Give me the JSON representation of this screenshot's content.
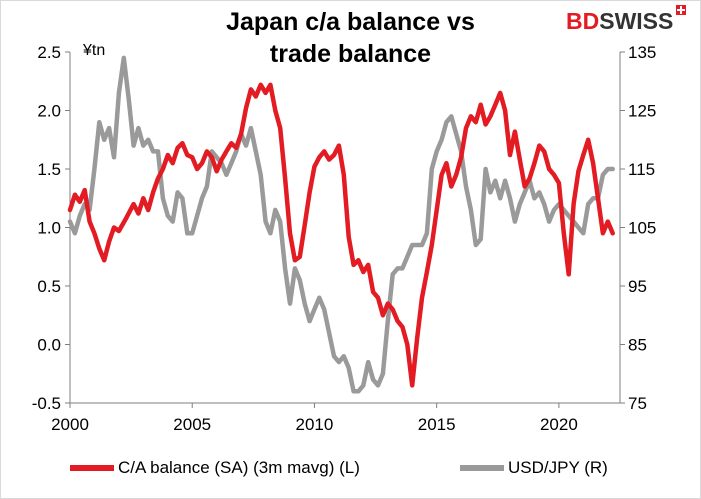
{
  "chart_data": {
    "type": "line",
    "title_line1": "Japan c/a balance vs",
    "title_line2": "trade balance",
    "unit_label": "¥tn",
    "logo": {
      "part1": "BD",
      "part2": "SWISS"
    },
    "colors": {
      "ca": "#e31b23",
      "usdjpy": "#9a9a9a",
      "logo_red": "#e31b23"
    },
    "x_ticks": [
      "2000",
      "2005",
      "2010",
      "2015",
      "2020"
    ],
    "x_range": [
      2000,
      2022.5
    ],
    "y_left": {
      "range": [
        -0.5,
        2.5
      ],
      "ticks": [
        "-0.5",
        "0.0",
        "0.5",
        "1.0",
        "1.5",
        "2.0",
        "2.5"
      ]
    },
    "y_right": {
      "range": [
        75,
        135
      ],
      "ticks": [
        "75",
        "85",
        "95",
        "105",
        "115",
        "125",
        "135"
      ]
    },
    "grid": false,
    "legend_position": "bottom",
    "series": [
      {
        "name": "C/A balance (SA) (3m mavg) (L)",
        "axis": "left",
        "points": [
          [
            2000.0,
            1.15
          ],
          [
            2000.2,
            1.28
          ],
          [
            2000.4,
            1.22
          ],
          [
            2000.6,
            1.32
          ],
          [
            2000.8,
            1.05
          ],
          [
            2001.0,
            0.95
          ],
          [
            2001.2,
            0.82
          ],
          [
            2001.4,
            0.72
          ],
          [
            2001.6,
            0.88
          ],
          [
            2001.8,
            1.0
          ],
          [
            2002.0,
            0.97
          ],
          [
            2002.3,
            1.08
          ],
          [
            2002.6,
            1.2
          ],
          [
            2002.8,
            1.12
          ],
          [
            2003.0,
            1.25
          ],
          [
            2003.2,
            1.15
          ],
          [
            2003.4,
            1.3
          ],
          [
            2003.6,
            1.42
          ],
          [
            2003.8,
            1.5
          ],
          [
            2004.0,
            1.62
          ],
          [
            2004.2,
            1.55
          ],
          [
            2004.4,
            1.68
          ],
          [
            2004.6,
            1.72
          ],
          [
            2004.8,
            1.62
          ],
          [
            2005.0,
            1.6
          ],
          [
            2005.2,
            1.5
          ],
          [
            2005.4,
            1.55
          ],
          [
            2005.6,
            1.65
          ],
          [
            2005.8,
            1.6
          ],
          [
            2006.0,
            1.48
          ],
          [
            2006.2,
            1.58
          ],
          [
            2006.4,
            1.65
          ],
          [
            2006.6,
            1.72
          ],
          [
            2006.8,
            1.68
          ],
          [
            2007.0,
            1.8
          ],
          [
            2007.2,
            2.02
          ],
          [
            2007.4,
            2.18
          ],
          [
            2007.6,
            2.12
          ],
          [
            2007.8,
            2.22
          ],
          [
            2008.0,
            2.15
          ],
          [
            2008.2,
            2.22
          ],
          [
            2008.4,
            2.0
          ],
          [
            2008.6,
            1.85
          ],
          [
            2008.8,
            1.42
          ],
          [
            2009.0,
            0.95
          ],
          [
            2009.2,
            0.72
          ],
          [
            2009.4,
            0.75
          ],
          [
            2009.6,
            1.02
          ],
          [
            2009.8,
            1.3
          ],
          [
            2010.0,
            1.52
          ],
          [
            2010.2,
            1.6
          ],
          [
            2010.4,
            1.65
          ],
          [
            2010.6,
            1.58
          ],
          [
            2010.8,
            1.62
          ],
          [
            2011.0,
            1.7
          ],
          [
            2011.2,
            1.45
          ],
          [
            2011.4,
            0.92
          ],
          [
            2011.6,
            0.68
          ],
          [
            2011.8,
            0.72
          ],
          [
            2012.0,
            0.62
          ],
          [
            2012.2,
            0.68
          ],
          [
            2012.4,
            0.45
          ],
          [
            2012.6,
            0.4
          ],
          [
            2012.8,
            0.25
          ],
          [
            2013.0,
            0.35
          ],
          [
            2013.2,
            0.3
          ],
          [
            2013.4,
            0.2
          ],
          [
            2013.6,
            0.15
          ],
          [
            2013.8,
            0.0
          ],
          [
            2014.0,
            -0.35
          ],
          [
            2014.2,
            0.05
          ],
          [
            2014.4,
            0.4
          ],
          [
            2014.6,
            0.62
          ],
          [
            2014.8,
            0.85
          ],
          [
            2015.0,
            1.15
          ],
          [
            2015.2,
            1.45
          ],
          [
            2015.4,
            1.55
          ],
          [
            2015.6,
            1.35
          ],
          [
            2015.8,
            1.45
          ],
          [
            2016.0,
            1.6
          ],
          [
            2016.2,
            1.85
          ],
          [
            2016.4,
            1.95
          ],
          [
            2016.6,
            1.9
          ],
          [
            2016.8,
            2.05
          ],
          [
            2017.0,
            1.88
          ],
          [
            2017.2,
            1.95
          ],
          [
            2017.4,
            2.05
          ],
          [
            2017.6,
            2.15
          ],
          [
            2017.8,
            2.0
          ],
          [
            2018.0,
            1.62
          ],
          [
            2018.2,
            1.82
          ],
          [
            2018.4,
            1.58
          ],
          [
            2018.6,
            1.35
          ],
          [
            2018.8,
            1.42
          ],
          [
            2019.0,
            1.55
          ],
          [
            2019.2,
            1.7
          ],
          [
            2019.4,
            1.65
          ],
          [
            2019.6,
            1.5
          ],
          [
            2019.8,
            1.45
          ],
          [
            2020.0,
            1.38
          ],
          [
            2020.2,
            0.95
          ],
          [
            2020.4,
            0.6
          ],
          [
            2020.6,
            1.2
          ],
          [
            2020.8,
            1.48
          ],
          [
            2021.0,
            1.62
          ],
          [
            2021.2,
            1.75
          ],
          [
            2021.4,
            1.55
          ],
          [
            2021.6,
            1.25
          ],
          [
            2021.8,
            0.95
          ],
          [
            2022.0,
            1.05
          ],
          [
            2022.2,
            0.95
          ]
        ]
      },
      {
        "name": "USD/JPY (R)",
        "axis": "right",
        "points": [
          [
            2000.0,
            106
          ],
          [
            2000.2,
            104
          ],
          [
            2000.4,
            107
          ],
          [
            2000.6,
            109
          ],
          [
            2000.8,
            108
          ],
          [
            2001.0,
            115
          ],
          [
            2001.2,
            123
          ],
          [
            2001.4,
            120
          ],
          [
            2001.6,
            122
          ],
          [
            2001.8,
            117
          ],
          [
            2002.0,
            128
          ],
          [
            2002.2,
            134
          ],
          [
            2002.4,
            127
          ],
          [
            2002.6,
            119
          ],
          [
            2002.8,
            122
          ],
          [
            2003.0,
            119
          ],
          [
            2003.2,
            120
          ],
          [
            2003.4,
            118
          ],
          [
            2003.6,
            118
          ],
          [
            2003.8,
            110
          ],
          [
            2004.0,
            107
          ],
          [
            2004.2,
            106
          ],
          [
            2004.4,
            111
          ],
          [
            2004.6,
            110
          ],
          [
            2004.8,
            104
          ],
          [
            2005.0,
            104
          ],
          [
            2005.2,
            107
          ],
          [
            2005.4,
            110
          ],
          [
            2005.6,
            112
          ],
          [
            2005.8,
            118
          ],
          [
            2006.0,
            117
          ],
          [
            2006.2,
            116
          ],
          [
            2006.4,
            114
          ],
          [
            2006.6,
            116
          ],
          [
            2006.8,
            118
          ],
          [
            2007.0,
            121
          ],
          [
            2007.2,
            119
          ],
          [
            2007.4,
            122
          ],
          [
            2007.6,
            118
          ],
          [
            2007.8,
            114
          ],
          [
            2008.0,
            106
          ],
          [
            2008.2,
            104
          ],
          [
            2008.4,
            108
          ],
          [
            2008.6,
            106
          ],
          [
            2008.8,
            98
          ],
          [
            2009.0,
            92
          ],
          [
            2009.2,
            98
          ],
          [
            2009.4,
            96
          ],
          [
            2009.6,
            92
          ],
          [
            2009.8,
            89
          ],
          [
            2010.0,
            91
          ],
          [
            2010.2,
            93
          ],
          [
            2010.4,
            91
          ],
          [
            2010.6,
            87
          ],
          [
            2010.8,
            83
          ],
          [
            2011.0,
            82
          ],
          [
            2011.2,
            83
          ],
          [
            2011.4,
            81
          ],
          [
            2011.6,
            77
          ],
          [
            2011.8,
            77
          ],
          [
            2012.0,
            78
          ],
          [
            2012.2,
            82
          ],
          [
            2012.4,
            79
          ],
          [
            2012.6,
            78
          ],
          [
            2012.8,
            80
          ],
          [
            2013.0,
            89
          ],
          [
            2013.2,
            97
          ],
          [
            2013.4,
            98
          ],
          [
            2013.6,
            98
          ],
          [
            2013.8,
            100
          ],
          [
            2014.0,
            102
          ],
          [
            2014.2,
            102
          ],
          [
            2014.4,
            102
          ],
          [
            2014.6,
            104
          ],
          [
            2014.8,
            115
          ],
          [
            2015.0,
            118
          ],
          [
            2015.2,
            120
          ],
          [
            2015.4,
            123
          ],
          [
            2015.6,
            124
          ],
          [
            2015.8,
            121
          ],
          [
            2016.0,
            118
          ],
          [
            2016.2,
            112
          ],
          [
            2016.4,
            108
          ],
          [
            2016.6,
            102
          ],
          [
            2016.8,
            103
          ],
          [
            2017.0,
            115
          ],
          [
            2017.2,
            111
          ],
          [
            2017.4,
            113
          ],
          [
            2017.6,
            110
          ],
          [
            2017.8,
            113
          ],
          [
            2018.0,
            110
          ],
          [
            2018.2,
            106
          ],
          [
            2018.4,
            109
          ],
          [
            2018.6,
            111
          ],
          [
            2018.8,
            113
          ],
          [
            2019.0,
            110
          ],
          [
            2019.2,
            111
          ],
          [
            2019.4,
            109
          ],
          [
            2019.6,
            106
          ],
          [
            2019.8,
            108
          ],
          [
            2020.0,
            109
          ],
          [
            2020.2,
            108
          ],
          [
            2020.4,
            107
          ],
          [
            2020.6,
            106
          ],
          [
            2020.8,
            105
          ],
          [
            2021.0,
            104
          ],
          [
            2021.2,
            109
          ],
          [
            2021.4,
            110
          ],
          [
            2021.6,
            110
          ],
          [
            2021.8,
            114
          ],
          [
            2022.0,
            115
          ],
          [
            2022.2,
            115
          ]
        ]
      }
    ]
  }
}
